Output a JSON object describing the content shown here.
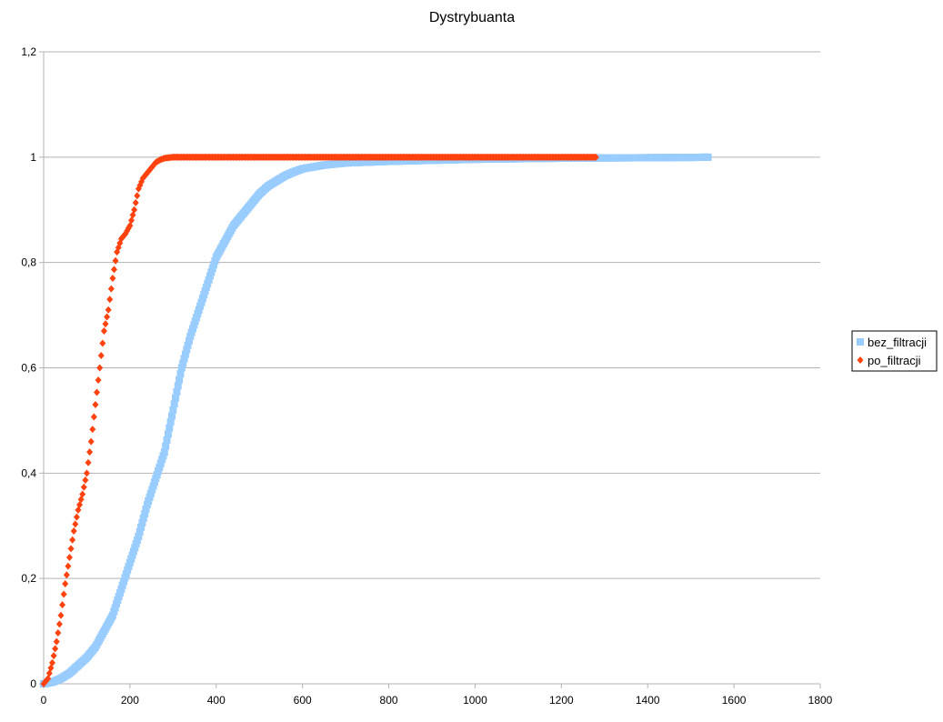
{
  "chart_data": {
    "type": "scatter",
    "title": "Dystrybuanta",
    "xlabel": "",
    "ylabel": "",
    "xlim": [
      0,
      1800
    ],
    "ylim": [
      0,
      1.2
    ],
    "x_ticks": [
      "0",
      "200",
      "400",
      "600",
      "800",
      "1000",
      "1200",
      "1400",
      "1600",
      "1800"
    ],
    "y_ticks": [
      "0",
      "0,2",
      "0,4",
      "0,6",
      "0,8",
      "1",
      "1,2"
    ],
    "x_tick_values": [
      0,
      200,
      400,
      600,
      800,
      1000,
      1200,
      1400,
      1600,
      1800
    ],
    "y_tick_values": [
      0,
      0.2,
      0.4,
      0.6,
      0.8,
      1.0,
      1.2
    ],
    "grid": "horizontal",
    "legend_position": "right",
    "series": [
      {
        "name": "bez_filtracji",
        "color": "#99ccff",
        "marker": "square",
        "x": [
          0,
          20,
          40,
          60,
          80,
          100,
          120,
          140,
          160,
          180,
          200,
          220,
          240,
          260,
          280,
          300,
          320,
          340,
          360,
          380,
          400,
          420,
          440,
          460,
          480,
          500,
          520,
          540,
          560,
          580,
          600,
          650,
          700,
          800,
          900,
          1000,
          1100,
          1200,
          1300,
          1400,
          1500,
          1540
        ],
        "y": [
          0,
          0.003,
          0.01,
          0.02,
          0.035,
          0.05,
          0.07,
          0.1,
          0.13,
          0.18,
          0.23,
          0.28,
          0.34,
          0.39,
          0.44,
          0.52,
          0.6,
          0.66,
          0.71,
          0.76,
          0.81,
          0.84,
          0.87,
          0.89,
          0.91,
          0.93,
          0.945,
          0.955,
          0.965,
          0.972,
          0.978,
          0.985,
          0.989,
          0.992,
          0.994,
          0.996,
          0.997,
          0.998,
          0.9985,
          0.999,
          0.9995,
          1.0
        ]
      },
      {
        "name": "po_filtracji",
        "color": "#ff420e",
        "marker": "diamond",
        "x": [
          0,
          10,
          20,
          30,
          40,
          50,
          60,
          70,
          80,
          90,
          100,
          110,
          120,
          130,
          140,
          150,
          160,
          170,
          180,
          190,
          200,
          210,
          220,
          230,
          240,
          250,
          260,
          270,
          280,
          290,
          300,
          320,
          350,
          400,
          500,
          600,
          700,
          800,
          900,
          1000,
          1100,
          1200,
          1280
        ],
        "y": [
          0,
          0.01,
          0.04,
          0.08,
          0.13,
          0.19,
          0.24,
          0.29,
          0.33,
          0.36,
          0.4,
          0.46,
          0.53,
          0.6,
          0.67,
          0.71,
          0.77,
          0.82,
          0.845,
          0.855,
          0.87,
          0.9,
          0.94,
          0.96,
          0.97,
          0.98,
          0.99,
          0.995,
          0.998,
          0.999,
          1.0,
          1.0,
          1.0,
          1.0,
          1.0,
          1.0,
          1.0,
          1.0,
          1.0,
          1.0,
          1.0,
          1.0,
          1.0
        ]
      }
    ]
  }
}
